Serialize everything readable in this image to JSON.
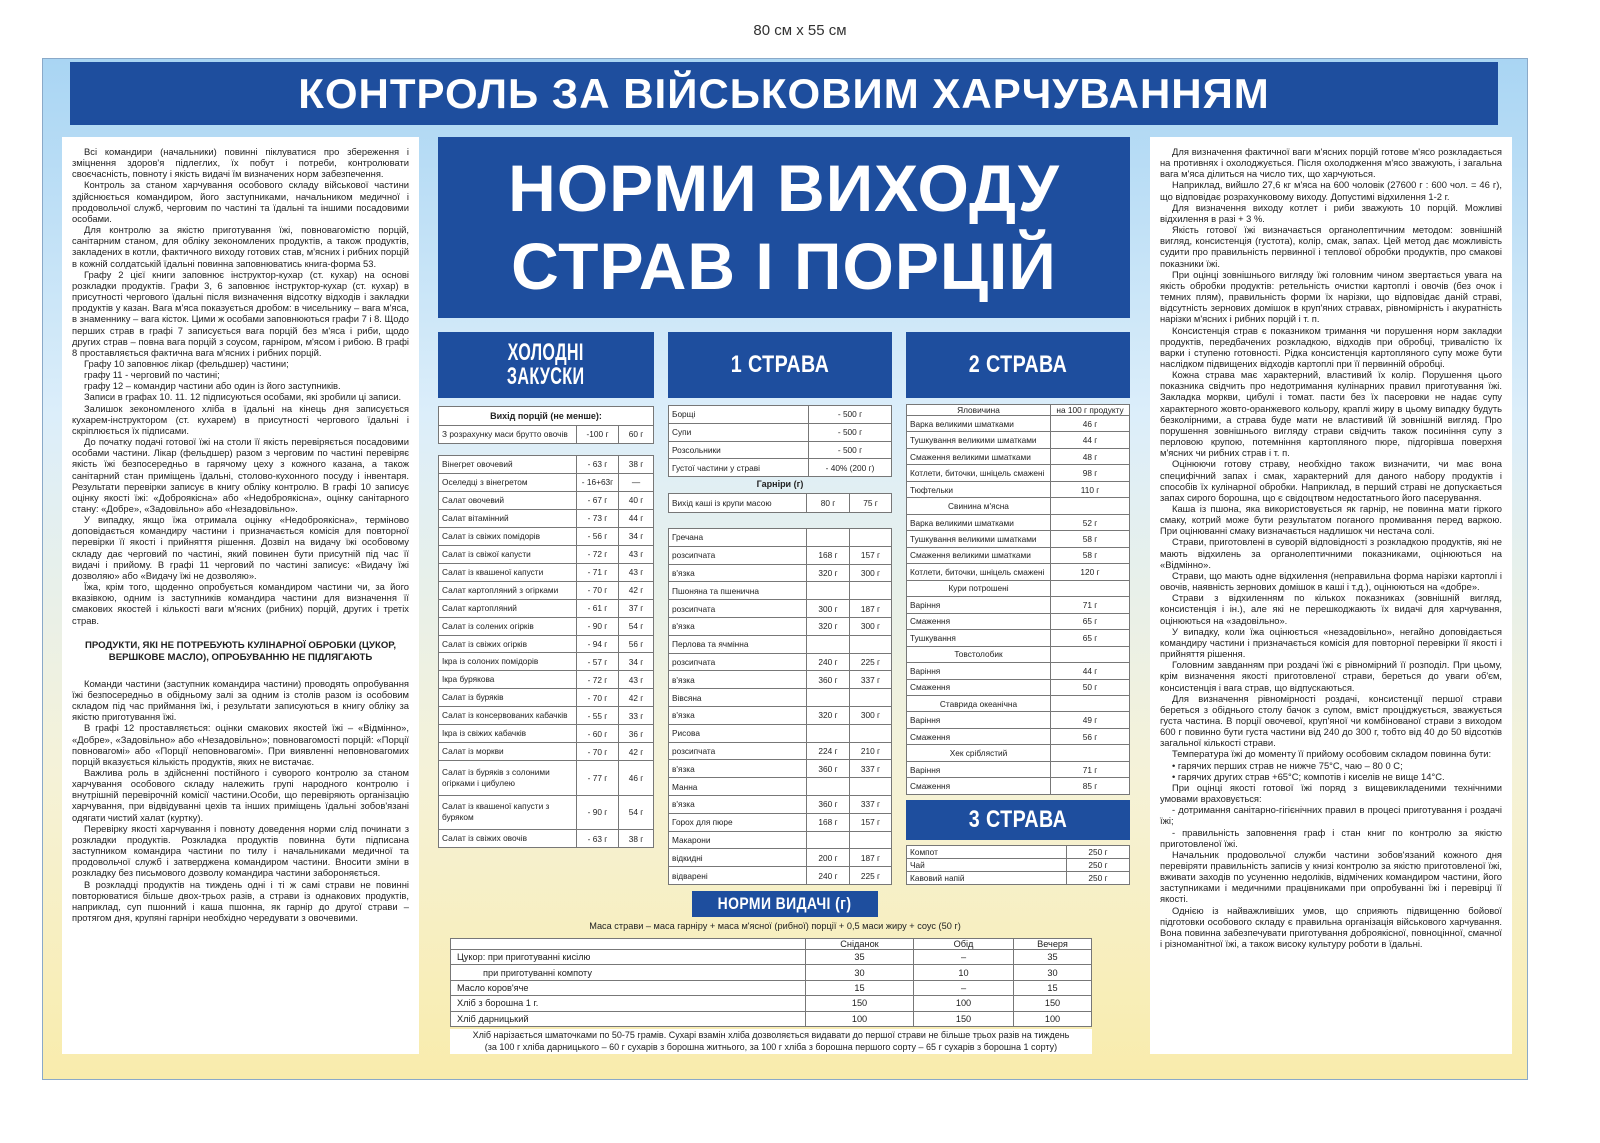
{
  "size_label": "80 см х 55 см",
  "colors": {
    "brand_blue": "#1e4e9e",
    "background_top": "#a9d5f3",
    "background_bottom": "#f9ecac"
  },
  "header_title": "КОНТРОЛЬ ЗА ВІЙСЬКОВИМ ХАРЧУВАННЯМ",
  "main_title": {
    "line1": "НОРМИ ВИХОДУ",
    "line2": "СТРАВ І ПОРЦІЙ"
  },
  "left_panel": {
    "paragraphs_top": [
      "Всі командири (начальники) повинні піклуватися про збереження і зміцнення здоров'я підлеглих, їх побут і потреби, контролювати своєчасність, повноту і якість видачі їм визначених норм забезпечення.",
      "Контроль за станом харчування особового складу військової частини здійснюється командиром, його заступниками, начальником медичної і продовольчої служб, черговим по частині та їдальні та іншими посадовими особами.",
      "Для контролю за якістю приготування їжі, повновагомістю порцій, санітарним станом, для обліку зекономлених продуктів, а також продуктів, закладених в котли, фактичного виходу готових став, м'ясних і рибних порцій в кожній солдатській їдальні повинна заповнюватись книга-форма 53.",
      "Графу 2 цієї книги заповнює інструктор-кухар (ст. кухар) на основі розкладки продуктів. Графи 3, 6 заповнює інструктор-кухар (ст. кухар) в присутності чергового їдальні після визначення відсотку відходів і закладки продуктів у казан. Вага м'яса показується дробом: в чисельнику – вага м'яса, в знаменнику – вага кісток. Цими ж особами заповнюються графи 7 і 8. Щодо перших страв в графі 7 записується вага порцій без м'яса і риби, щодо других страв – повна вага порцій з соусом, гарніром, м'ясом і рибою. В графі 8 проставляється фактична вага м'ясних і рибних порцій.",
      "Графу 10 заповнює лікар (фельдшер) частини;",
      "графу 11 - черговий по частині;",
      "графу 12 – командир частини або один із його заступників.",
      "Записи в графах 10. 11. 12 підписуються особами, які зробили ці записи.",
      "Залишок зекономленого хліба в їдальні на кінець дня записується кухарем-інструктором (ст. кухарем) в присутності чергового їдальні і скріплюється їх підписами.",
      "До початку подачі готової їжі на столи її якість перевіряється посадовими особами частини. Лікар (фельдшер) разом з черговим по частині перевіряє якість їжі безпосередньо в гарячому цеху з кожного казана, а також санітарний стан приміщень їдальні, столово-кухонного посуду і інвентаря. Результати перевірки записує в книгу обліку контролю. В графі 10 записує оцінку якості їжі: «Доброякісна» або «Недоброякісна», оцінку санітарного стану: «Добре», «Задовільно» або «Незадовільно».",
      "У випадку, якщо їжа отримала оцінку «Недоброякісна», терміново доповідається командиру частини і призначається комісія для повторної перевірки її якості і прийняття рішення. Дозвіл на видачу їжі особовому складу дає черговий по частині, який повинен бути присутній під час її видачі і прийому. В графі 11 черговий по частині записує: «Видачу їжі дозволяю» або «Видачу їжі не дозволяю».",
      "Їжа, крім того, щоденно опробується командиром частини чи, за його вказівкою, одним із заступників командира частини для визначення її смакових якостей і кількості ваги м'ясних (рибних) порцій, других і третіх страв."
    ],
    "heading": "ПРОДУКТИ, ЯКІ НЕ ПОТРЕБУЮТЬ КУЛІНАРНОЇ ОБРОБКИ (ЦУКОР, ВЕРШКОВЕ МАСЛО), ОПРОБУВАННЮ НЕ ПІДЛЯГАЮТЬ",
    "paragraphs_bottom": [
      "Команди частини (заступник командира частини) проводять опробування їжі безпосередньо в обідньому залі за одним із столів разом із особовим складом під час приймання їжі, і результати записуються в книгу обліку за якістю приготування їжі.",
      "В графі 12 проставляється: оцінки смакових якостей їжі – «Відмінно», «Добре», «Задовільно» або «Незадовільно»; повновагомості порцій: «Порції повновагомі» або «Порції неповновагомі». При виявленні неповновагомих порцій вказується кількість продуктів, яких не вистачає.",
      "Важлива роль в здійсненні постійного і суворого контролю за станом харчування особового складу належить групі народного контролю і внутрішній перевірочній комісії частини.Особи, що перевіряють організацію харчування, при відвідуванні цехів та інших приміщень їдальні зобов'язані одягати чистий халат (куртку).",
      "Перевірку якості харчування і повноту доведення норми слід починати з розкладки продуктів. Розкладка продуктів повинна бути підписана заступником командира частини по тилу і начальниками медичної та продовольчої служб і затверджена командиром частини. Вносити зміни в розкладку без письмового дозволу командира частини забороняється.",
      "В розкладці продуктів на тиждень одні і ті ж самі страви не повинні повторюватися більше двох-трьох разів, а страви із однакових продуктів, наприклад, суп пшонний і каша пшонна, як гарнір до другої страви – протягом дня, крупяні гарніри необхідно чередувати з овочевими."
    ]
  },
  "right_panel": {
    "paragraphs": [
      "Для визначення фактичної ваги м'ясних порцій готове м'ясо розкладається на противнях і охолоджується. Після охолодження м'ясо зважують, і загальна вага м'яса ділиться на число тих, що харчуються.",
      "Наприклад, вийшло 27,6 кг м'яса на 600 чоловік (27600 г : 600 чол. = 46 г), що відповідає розрахунковому виходу. Допустимі відхилення 1-2 г.",
      "Для визначення виходу котлет і риби зважують 10 порцій. Можливі відхилення в разі + 3 %.",
      "Якість готової їжі визначається органолептичним методом: зовнішній вигляд, консистенція (густота), колір, смак, запах. Цей метод дає можливість судити про правильність первинної і теплової обробки продуктів, про смакові показники їжі.",
      "При оцінці зовнішнього вигляду їжі головним чином звертається увага на якість обробки продуктів: ретельність очистки картоплі і овочів (без очок і темних плям), правильність форми їх нарізки, що відповідає даній страві, відсутність зернових домішок в круп'яних стравах, рівномірність і акуратність нарізки м'ясних і рибних порцій і т. п.",
      "Консистенція страв є показником тримання чи порушення норм закладки продуктів, передбачених розкладкою, відходів при обробці, тривалістю їх варки і ступеню готовності. Рідка консистенція картопляного супу може бути наслідком підвищених відходів картоплі при її первинній обробці.",
      "Кожна страва має характерний, властивий їх колір. Порушення цього показника свідчить про недотримання кулінарних правил приготування їжі. Закладка моркви, цибулі і томат. пасти без їх пасеровки не надає супу характерного жовто-оранжевого кольору, краплі жиру в цьому випадку будуть безколірними, а страва буде мати не властивий їй зовнішній вигляд. Про порушення зовнішнього вигляду страви свідчить також посиніння супу з перловою крупою, потемніння картопляного пюре, підгорівша поверхня м'ясних чи рибних страв і т. п.",
      "Оцінюючи готову страву, необхідно також визначити, чи має вона специфічний запах і смак, характерний для даного набору продуктів і способів їх кулінарної обробки. Наприклад, в перший страві не допускається запах сирого борошна, що є свідоцтвом недостатнього його пасерування.",
      "Каша із пшона, яка використовується як гарнір, не повинна мати гіркого смаку, котрий може бути результатом поганого промивання перед варкою. При оцінюванні смаку визначається надлишок чи нестача солі.",
      "Страви, приготовлені в суворій відповідності з розкладкою продуктів, які не мають відхилень за органолептичними показниками, оцінюються на «Відмінно».",
      "Страви, що мають одне відхилення (неправильна форма нарізки картоплі і овочів, наявність зернових домішок в каші і т.д.), оцінюються на «добре».",
      "Страви з відхиленням по кількох показниках (зовнішній вигляд, консистенція і ін.), але які не перешкоджають їх видачі для харчування, оцінюються на «задовільно».",
      "У випадку, коли їжа оцінюється «незадовільно», негайно доповідається командиру частини і призначається комісія для повторної перевірки її якості і прийняття рішення.",
      "Головним завданням при роздачі їжі є рівномірний її розподіл. При цьому, крім визначення якості приготовленої страви, береться до уваги об'єм, консистенція і вага страв, що відпускаються.",
      "Для визначення рівномірності роздачі, консистенції першої страви береться з обіднього столу бачок з супом, вміст проціджується, зважується густа частина. В порції овочевої, круп'яної чи комбінованої страви з виходом 600 г повинно бути густа частини від 240 до 300 г, тобто від 40 до 50 відсотків загальної кількості страви.",
      "Температура їжі до моменту її прийому особовим складом повинна бути:",
      "• гарячих перших страв не нижче 75°C, чаю – 80 0 C;",
      "• гарячих других страв +65°C; компотів і киселів не вище 14°C.",
      "При оцінці якості готової їжі поряд з вищевикладеними технічними умовами враховується:",
      "- дотримання санітарно-гігієнічних правил в процесі приготування і роздачі їжі;",
      "- правильність заповнення граф і стан книг по контролю за якістю приготовленої їжі.",
      "Начальник продовольчої служби частини зобов'язаний кожного дня перевіряти правильність записів у книзі контролю за якістю приготовленої їжі, вживати заходів по усуненню недоліків, відмічених командиром частини, його заступниками і медичними працівниками при опробуванні їжі і перевірці її якості.",
      "Однією із найважливіших умов, що сприяють підвищенню бойової підготовки особового складу є правильна організація військового харчування. Вона повинна забезпечувати приготування доброякісної, повноцінної, смачної і різноманітної їжі, а також високу культуру роботи в їдальні."
    ]
  },
  "cold": {
    "title_line1": "ХОЛОДНІ",
    "title_line2": "ЗАКУСКИ",
    "caption": "Вихід порцій (не менше):",
    "base_row": [
      "З розрахунку маси брутто овочів",
      "-100 г",
      "60 г"
    ],
    "rows": [
      [
        "Вінегрет овочевий",
        "- 63 г",
        "38 г"
      ],
      [
        "Оселедці з вінегретом",
        "- 16+63г",
        "—"
      ],
      [
        "Салат овочевий",
        "- 67 г",
        "40 г"
      ],
      [
        "Салат вітамінний",
        "- 73 г",
        "44 г"
      ],
      [
        "Салат із свіжих помідорів",
        "- 56 г",
        "34 г"
      ],
      [
        "Салат із свіжої капусти",
        "- 72 г",
        "43 г"
      ],
      [
        "Салат із квашеної капусти",
        "- 71 г",
        "43 г"
      ],
      [
        "Салат картопляний з огірками",
        "- 70 г",
        "42 г"
      ],
      [
        "Салат картопляний",
        "- 61 г",
        "37 г"
      ],
      [
        "Салат із солених огірків",
        "- 90 г",
        "54 г"
      ],
      [
        "Салат із свіжих огірків",
        "- 94 г",
        "56 г"
      ],
      [
        "Ікра із солоних помідорів",
        "- 57 г",
        "34 г"
      ],
      [
        "Ікра бурякова",
        "- 72 г",
        "43 г"
      ],
      [
        "Салат із буряків",
        "- 70 г",
        "42 г"
      ],
      [
        "Салат із консервованих кабачків",
        "- 55 г",
        "33 г"
      ],
      [
        "Ікра із свіжих кабачків",
        "- 60 г",
        "36 г"
      ],
      [
        "Салат із моркви",
        "- 70 г",
        "42 г"
      ],
      [
        "Салат із буряків з солоними огірками і цибулею",
        "- 77 г",
        "46 г"
      ],
      [
        "Салат із квашеної капусти з буряком",
        "- 90 г",
        "54 г"
      ],
      [
        "Салат із свіжих овочів",
        "- 63 г",
        "38 г"
      ]
    ]
  },
  "first": {
    "title": "1 СТРАВА",
    "soups": [
      [
        "Борщі",
        "- 500 г"
      ],
      [
        "Супи",
        "- 500 г"
      ],
      [
        "Розсольники",
        "- 500 г"
      ],
      [
        "Густої частини у страві",
        "- 40% (200 г)"
      ]
    ],
    "garnish_caption": "Гарніри (г)",
    "garnish_base": [
      "Вихід каші із крупи масою",
      "80 г",
      "75 г"
    ],
    "garnish_rows": [
      [
        "Гречана",
        "",
        ""
      ],
      [
        "розсипчата",
        "168 г",
        "157 г"
      ],
      [
        "в'язка",
        "320 г",
        "300 г"
      ],
      [
        "Пшоняна та пшенична",
        "",
        ""
      ],
      [
        "розсипчата",
        "300 г",
        "187 г"
      ],
      [
        "в'язка",
        "320 г",
        "300 г"
      ],
      [
        "Перлова та ячмінна",
        "",
        ""
      ],
      [
        "розсипчата",
        "240 г",
        "225 г"
      ],
      [
        "в'язка",
        "360 г",
        "337 г"
      ],
      [
        "Вівсяна",
        "",
        ""
      ],
      [
        "в'язка",
        "320 г",
        "300 г"
      ],
      [
        "Рисова",
        "",
        ""
      ],
      [
        "розсипчата",
        "224 г",
        "210 г"
      ],
      [
        "в'язка",
        "360 г",
        "337 г"
      ],
      [
        "Манна",
        "",
        ""
      ],
      [
        "в'язка",
        "360 г",
        "337 г"
      ],
      [
        "Горох для пюре",
        "168 г",
        "157 г"
      ],
      [
        "Макарони",
        "",
        ""
      ],
      [
        "відкидні",
        "200 г",
        "187 г"
      ],
      [
        "відварені",
        "240 г",
        "225 г"
      ]
    ]
  },
  "second": {
    "title": "2 СТРАВА",
    "header": [
      "Яловичина",
      "на 100 г продукту"
    ],
    "rows": [
      [
        "Варка великими шматками",
        "46 г",
        false
      ],
      [
        "Тушкування великими шматками",
        "44 г",
        false
      ],
      [
        "Смаження великими шматками",
        "48 г",
        false
      ],
      [
        "Котлети, биточки, шніцель смажені",
        "98 г",
        false
      ],
      [
        "Тюфтельки",
        "110 г",
        false
      ],
      [
        "Свинина м'ясна",
        "",
        true
      ],
      [
        "Варка великими шматками",
        "52 г",
        false
      ],
      [
        "Тушкування великими шматками",
        "58 г",
        false
      ],
      [
        "Смаження великими шматками",
        "58 г",
        false
      ],
      [
        "Котлети, биточки, шніцель смажені",
        "120 г",
        false
      ],
      [
        "Кури потрошені",
        "",
        true
      ],
      [
        "Варіння",
        "71 г",
        false
      ],
      [
        "Смаження",
        "65 г",
        false
      ],
      [
        "Тушкування",
        "65 г",
        false
      ],
      [
        "Товстолобик",
        "",
        true
      ],
      [
        "Варіння",
        "44 г",
        false
      ],
      [
        "Смаження",
        "50 г",
        false
      ],
      [
        "Ставрида океанічна",
        "",
        true
      ],
      [
        "Варіння",
        "49 г",
        false
      ],
      [
        "Смаження",
        "56 г",
        false
      ],
      [
        "Хек сріблястий",
        "",
        true
      ],
      [
        "Варіння",
        "71 г",
        false
      ],
      [
        "Смаження",
        "85 г",
        false
      ]
    ]
  },
  "third": {
    "title": "3 СТРАВА",
    "rows": [
      [
        "Компот",
        "250 г"
      ],
      [
        "Чай",
        "250 г"
      ],
      [
        "Кавовий напій",
        "250 г"
      ]
    ]
  },
  "norms": {
    "title": "НОРМИ ВИДАЧІ (г)",
    "formula": "Маса страви – маса гарніру + маса м'ясної (рибної) порції + 0,5 маси жиру + соус (50 г)",
    "columns": [
      "",
      "Сніданок",
      "Обід",
      "Вечеря"
    ],
    "rows": [
      [
        "Цукор: при приготуванні кисілю",
        "35",
        "–",
        "35"
      ],
      [
        "при приготуванні компоту",
        "30",
        "10",
        "30"
      ],
      [
        "Масло коров'яче",
        "15",
        "–",
        "15"
      ],
      [
        "Хліб з борошна 1 г.",
        "150",
        "100",
        "150"
      ],
      [
        "Хліб дарницький",
        "100",
        "150",
        "100"
      ]
    ],
    "note_line1": "Хліб нарізається шматочками по 50-75 грамів. Сухарі взамін хліба дозволяється видавати до першої страви не більше трьох разів на тиждень",
    "note_line2": "(за 100 г хліба дарницького – 60 г сухарів з борошна житнього, за 100 г хліба з борошна першого сорту – 65 г сухарів з борошна 1 сорту)"
  }
}
